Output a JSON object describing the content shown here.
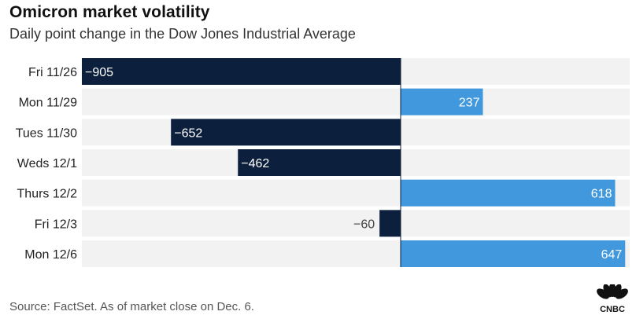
{
  "header": {
    "title": "Omicron market volatility",
    "subtitle": "Daily point change in the Dow Jones Industrial Average"
  },
  "footer": {
    "source": "Source: FactSet. As of market close on Dec. 6.",
    "logo_text": "CNBC"
  },
  "colors": {
    "negative": "#0c1f3d",
    "positive": "#4198dc",
    "row_background": "#f2f2f2",
    "zero_line": "#0c1f3d"
  },
  "chart_data": {
    "type": "bar",
    "orientation": "horizontal",
    "categories": [
      "Fri 11/26",
      "Mon 11/29",
      "Tues 11/30",
      "Weds 12/1",
      "Thurs 12/2",
      "Fri 12/3",
      "Mon 12/6"
    ],
    "values": [
      -905,
      237,
      -652,
      -462,
      618,
      -60,
      647
    ],
    "value_labels": [
      "−905",
      "237",
      "−652",
      "−462",
      "618",
      "−60",
      "647"
    ],
    "title": "Omicron market volatility",
    "subtitle": "Daily point change in the Dow Jones Industrial Average",
    "xlim": [
      -905,
      660
    ],
    "grid": false,
    "legend": "none"
  }
}
